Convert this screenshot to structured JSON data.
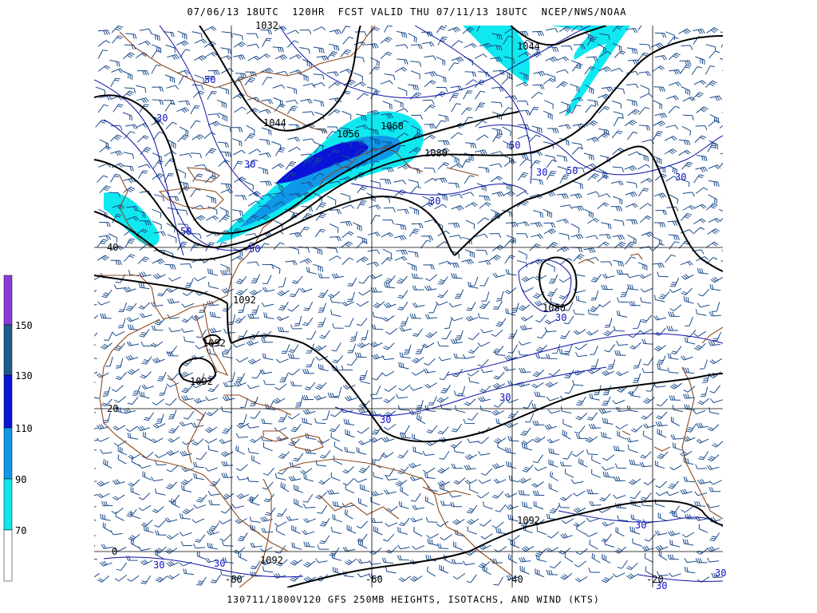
{
  "header": {
    "title": "07/06/13 18UTC  120HR  FCST VALID THU 07/11/13 18UTC  NCEP/NWS/NOAA",
    "footer": "130711/1800V120 GFS 250MB HEIGHTS, ISOTACHS, AND WIND (KTS)"
  },
  "legend": {
    "ticks": [
      "150",
      "130",
      "110",
      "90",
      "70"
    ],
    "colors": {
      "c150": "#8a3ad8",
      "c130": "#1f5a8c",
      "c110": "#0a14d8",
      "c90": "#1098e8",
      "c70": "#10e8f0",
      "c0": "#ffffff"
    }
  },
  "map": {
    "lat_labels": [
      "40",
      "20",
      "0"
    ],
    "lon_labels": [
      "-80",
      "-60",
      "-40",
      "-20"
    ],
    "height_labels": [
      "1044",
      "1044",
      "1056",
      "1068",
      "1080",
      "1080",
      "1092",
      "1092",
      "1092",
      "1092",
      "1092",
      "1092",
      "1032"
    ],
    "isotach_labels": [
      "50",
      "30",
      "30",
      "50",
      "50",
      "30",
      "50",
      "30",
      "50",
      "30",
      "30",
      "30",
      "30",
      "30",
      "30",
      "30",
      "30",
      "30",
      "30"
    ],
    "colors": {
      "height_contour": "#000000",
      "isotach": "#1010a8",
      "coastline": "#8b4a20",
      "barb": "#1a4a8a",
      "grid": "#000000",
      "isotach_label": "#1010c8"
    }
  }
}
